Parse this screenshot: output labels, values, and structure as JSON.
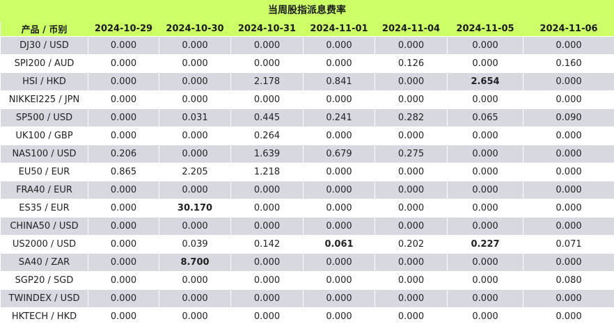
{
  "title": "当周股指派息费率",
  "columns": [
    "产品 / 币别",
    "2024-10-29",
    "2024-10-30",
    "2024-10-31",
    "2024-11-01",
    "2024-11-04",
    "2024-11-05",
    "2024-11-06"
  ],
  "rows": [
    {
      "product": "DJ30 / USD",
      "values": [
        "0.000",
        "0.000",
        "0.000",
        "0.000",
        "0.000",
        "0.000",
        "0.000"
      ],
      "bold": []
    },
    {
      "product": "SPI200 / AUD",
      "values": [
        "0.000",
        "0.000",
        "0.000",
        "0.000",
        "0.126",
        "0.000",
        "0.160"
      ],
      "bold": []
    },
    {
      "product": "HSI / HKD",
      "values": [
        "0.000",
        "0.000",
        "2.178",
        "0.841",
        "0.000",
        "2.654",
        "0.000"
      ],
      "bold": [
        5
      ]
    },
    {
      "product": "NIKKEI225 / JPN",
      "values": [
        "0.000",
        "0.000",
        "0.000",
        "0.000",
        "0.000",
        "0.000",
        "0.000"
      ],
      "bold": []
    },
    {
      "product": "SP500 / USD",
      "values": [
        "0.000",
        "0.031",
        "0.445",
        "0.241",
        "0.282",
        "0.065",
        "0.090"
      ],
      "bold": []
    },
    {
      "product": "UK100 / GBP",
      "values": [
        "0.000",
        "0.000",
        "0.264",
        "0.000",
        "0.000",
        "0.000",
        "0.000"
      ],
      "bold": []
    },
    {
      "product": "NAS100 / USD",
      "values": [
        "0.206",
        "0.000",
        "1.639",
        "0.679",
        "0.275",
        "0.000",
        "0.000"
      ],
      "bold": []
    },
    {
      "product": "EU50 / EUR",
      "values": [
        "0.865",
        "2.205",
        "1.218",
        "0.000",
        "0.000",
        "0.000",
        "0.000"
      ],
      "bold": []
    },
    {
      "product": "FRA40 / EUR",
      "values": [
        "0.000",
        "0.000",
        "0.000",
        "0.000",
        "0.000",
        "0.000",
        "0.000"
      ],
      "bold": []
    },
    {
      "product": "ES35 / EUR",
      "values": [
        "0.000",
        "30.170",
        "0.000",
        "0.000",
        "0.000",
        "0.000",
        "0.000"
      ],
      "bold": [
        1
      ]
    },
    {
      "product": "CHINA50 / USD",
      "values": [
        "0.000",
        "0.000",
        "0.000",
        "0.000",
        "0.000",
        "0.000",
        "0.000"
      ],
      "bold": []
    },
    {
      "product": "US2000 / USD",
      "values": [
        "0.000",
        "0.039",
        "0.142",
        "0.061",
        "0.202",
        "0.227",
        "0.071"
      ],
      "bold": [
        3,
        5
      ]
    },
    {
      "product": "SA40 / ZAR",
      "values": [
        "0.000",
        "8.700",
        "0.000",
        "0.000",
        "0.000",
        "0.000",
        "0.000"
      ],
      "bold": [
        1
      ]
    },
    {
      "product": "SGP20 / SGD",
      "values": [
        "0.000",
        "0.000",
        "0.000",
        "0.000",
        "0.000",
        "0.000",
        "0.080"
      ],
      "bold": []
    },
    {
      "product": "TWINDEX / USD",
      "values": [
        "0.000",
        "0.000",
        "0.000",
        "0.000",
        "0.000",
        "0.000",
        "0.000"
      ],
      "bold": []
    },
    {
      "product": "HKTECH / HKD",
      "values": [
        "0.000",
        "0.000",
        "0.000",
        "0.000",
        "0.000",
        "0.000",
        "0.000"
      ],
      "bold": []
    }
  ]
}
